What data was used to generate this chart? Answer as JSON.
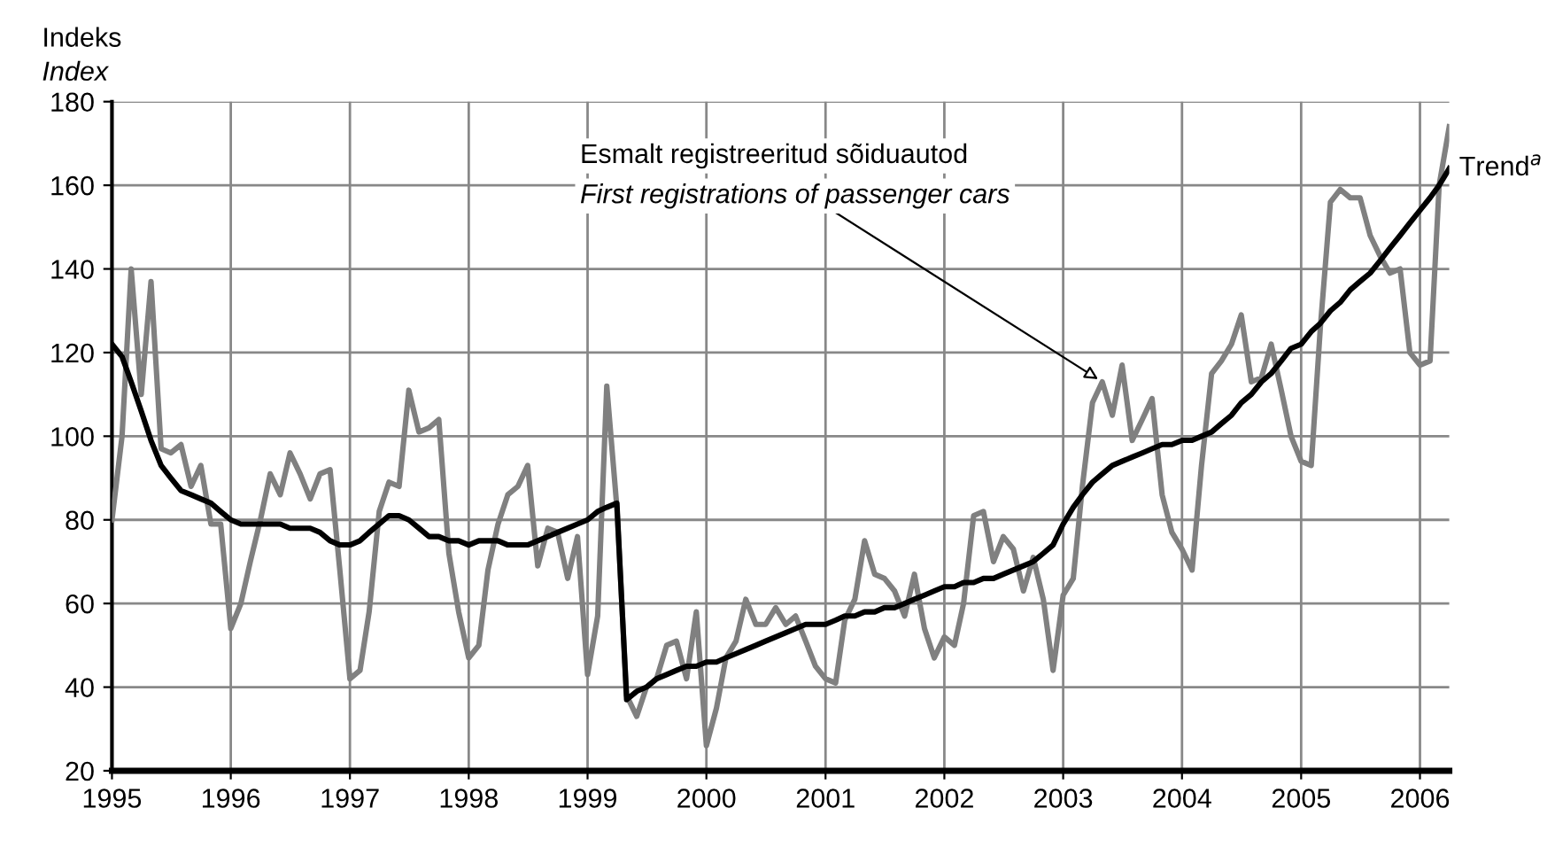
{
  "chart_data": {
    "type": "line",
    "title": "Indeks",
    "subtitle": "Index",
    "x": [
      "1995-01",
      "1995-02",
      "1995-03",
      "1995-04",
      "1995-05",
      "1995-06",
      "1995-07",
      "1995-08",
      "1995-09",
      "1995-10",
      "1995-11",
      "1995-12",
      "1996-01",
      "1996-02",
      "1996-03",
      "1996-04",
      "1996-05",
      "1996-06",
      "1996-07",
      "1996-08",
      "1996-09",
      "1996-10",
      "1996-11",
      "1996-12",
      "1997-01",
      "1997-02",
      "1997-03",
      "1997-04",
      "1997-05",
      "1997-06",
      "1997-07",
      "1997-08",
      "1997-09",
      "1997-10",
      "1997-11",
      "1997-12",
      "1998-01",
      "1998-02",
      "1998-03",
      "1998-04",
      "1998-05",
      "1998-06",
      "1998-07",
      "1998-08",
      "1998-09",
      "1998-10",
      "1998-11",
      "1998-12",
      "1999-01",
      "1999-02",
      "1999-03",
      "1999-04",
      "1999-05",
      "1999-06",
      "1999-07",
      "1999-08",
      "1999-09",
      "1999-10",
      "1999-11",
      "1999-12",
      "2000-01",
      "2000-02",
      "2000-03",
      "2000-04",
      "2000-05",
      "2000-06",
      "2000-07",
      "2000-08",
      "2000-09",
      "2000-10",
      "2000-11",
      "2000-12",
      "2001-01",
      "2001-02",
      "2001-03",
      "2001-04",
      "2001-05",
      "2001-06",
      "2001-07",
      "2001-08",
      "2001-09",
      "2001-10",
      "2001-11",
      "2001-12",
      "2002-01",
      "2002-02",
      "2002-03",
      "2002-04",
      "2002-05",
      "2002-06",
      "2002-07",
      "2002-08",
      "2002-09",
      "2002-10",
      "2002-11",
      "2002-12",
      "2003-01",
      "2003-02",
      "2003-03",
      "2003-04",
      "2003-05",
      "2003-06",
      "2003-07",
      "2003-08",
      "2003-09",
      "2003-10",
      "2003-11",
      "2003-12",
      "2004-01",
      "2004-02",
      "2004-03",
      "2004-04",
      "2004-05",
      "2004-06",
      "2004-07",
      "2004-08",
      "2004-09",
      "2004-10",
      "2004-11",
      "2004-12",
      "2005-01",
      "2005-02",
      "2005-03",
      "2005-04",
      "2005-05",
      "2005-06",
      "2005-07",
      "2005-08",
      "2005-09",
      "2005-10",
      "2005-11",
      "2005-12",
      "2006-01",
      "2006-02",
      "2006-03",
      "2006-04"
    ],
    "xlim": [
      "1995-01",
      "2006-04"
    ],
    "xticks": [
      "1995",
      "1996",
      "1997",
      "1998",
      "1999",
      "2000",
      "2001",
      "2002",
      "2003",
      "2004",
      "2005",
      "2006"
    ],
    "ylim": [
      20,
      180
    ],
    "yticks": [
      20,
      40,
      60,
      80,
      100,
      120,
      140,
      160,
      180
    ],
    "grid": true,
    "annotations": [
      {
        "text": "Esmalt registreeritud sõiduautod\nFirst registrations of passenger cars",
        "x": "2003-05",
        "y": 113
      }
    ],
    "series": [
      {
        "color": "#808080",
        "values": [
          80,
          100,
          140,
          110,
          137,
          97,
          96,
          98,
          88,
          93,
          79,
          79,
          54,
          60,
          70,
          80,
          91,
          86,
          96,
          91,
          85,
          91,
          92,
          68,
          42,
          44,
          58,
          82,
          89,
          88,
          111,
          101,
          102,
          104,
          72,
          58,
          47,
          50,
          68,
          79,
          86,
          88,
          93,
          69,
          78,
          77,
          66,
          76,
          43,
          57,
          112,
          83,
          38,
          33,
          40,
          42,
          50,
          51,
          42,
          58,
          26,
          35,
          47,
          51,
          61,
          55,
          55,
          59,
          55,
          57,
          51,
          45,
          42,
          41,
          56,
          61,
          75,
          67,
          66,
          63,
          57,
          67,
          54,
          47,
          52,
          50,
          60,
          81,
          82,
          70,
          76,
          73,
          63,
          71,
          61,
          44,
          62,
          66,
          88,
          108,
          113,
          105,
          117,
          99,
          104,
          109,
          86,
          77,
          73,
          68,
          93,
          115,
          118,
          122,
          129,
          113,
          114,
          122,
          111,
          100,
          94,
          93,
          126,
          156,
          159,
          157,
          157,
          148,
          143,
          139,
          140,
          120,
          117,
          118,
          160,
          174
        ]
      },
      {
        "name": "Trend$^{a}$",
        "color": "#000000",
        "values": [
          122,
          119,
          113,
          106,
          99,
          93,
          90,
          87,
          86,
          85,
          84,
          82,
          80,
          79,
          79,
          79,
          79,
          79,
          78,
          78,
          78,
          77,
          75,
          74,
          74,
          75,
          77,
          79,
          81,
          81,
          80,
          78,
          76,
          76,
          75,
          75,
          74,
          75,
          75,
          75,
          74,
          74,
          74,
          75,
          76,
          77,
          78,
          79,
          80,
          82,
          83,
          84,
          37,
          39,
          40,
          42,
          43,
          44,
          45,
          45,
          46,
          46,
          47,
          48,
          49,
          50,
          51,
          52,
          53,
          54,
          55,
          55,
          55,
          56,
          57,
          57,
          58,
          58,
          59,
          59,
          60,
          61,
          62,
          63,
          64,
          64,
          65,
          65,
          66,
          66,
          67,
          68,
          69,
          70,
          72,
          74,
          79,
          83,
          86,
          89,
          91,
          93,
          94,
          95,
          96,
          97,
          98,
          98,
          99,
          99,
          100,
          101,
          103,
          105,
          108,
          110,
          113,
          115,
          118,
          121,
          122,
          125,
          127,
          130,
          132,
          135,
          137,
          139,
          142,
          145,
          148,
          151,
          154,
          157,
          160,
          164
        ]
      }
    ]
  }
}
